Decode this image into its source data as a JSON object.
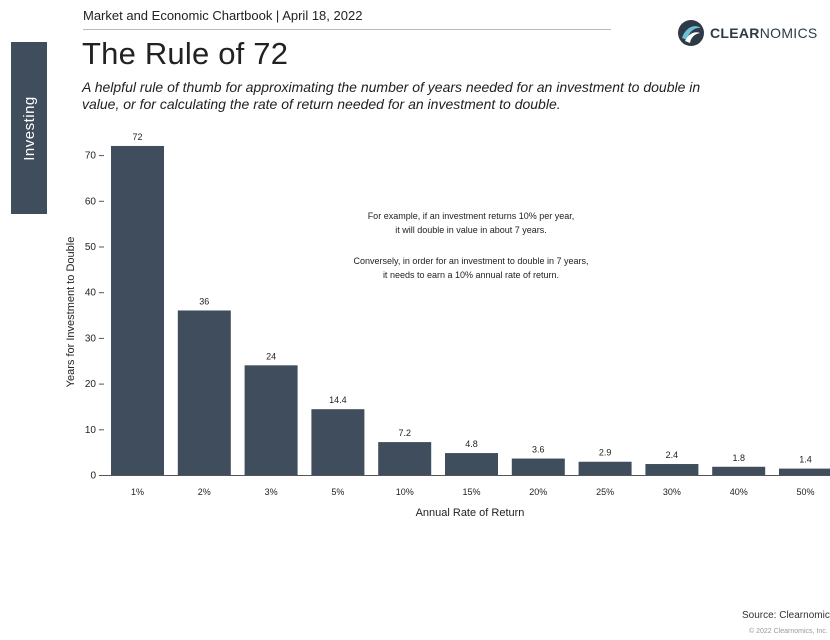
{
  "side_tab": {
    "label": "Investing"
  },
  "header": {
    "chartbook": "Market and Economic Chartbook | April 18, 2022",
    "logo_bold": "CLEAR",
    "logo_thin": "NOMICS",
    "logo_icon": "clearnomics-swirl-icon",
    "title": "The Rule of 72",
    "subtitle": "A helpful rule of thumb for approximating the number of years needed for an investment to double in value, or for calculating the rate of return needed for an investment to double."
  },
  "annotation": {
    "line1": "For example, if an investment returns 10% per year,",
    "line2": "it will double in value in about 7 years.",
    "line3": "Conversely, in order for an investment to double in 7 years,",
    "line4": "it needs to earn a 10% annual rate of return."
  },
  "footer": {
    "source": "Source: Clearnomics",
    "copyright": "© 2022 Clearnomics, Inc."
  },
  "colors": {
    "bar": "#3f4d5c",
    "side_tab": "#3f4d5c",
    "logo_accent": "#6bbfd6"
  },
  "chart_data": {
    "type": "bar",
    "categories": [
      "1%",
      "2%",
      "3%",
      "5%",
      "10%",
      "15%",
      "20%",
      "25%",
      "30%",
      "40%",
      "50%"
    ],
    "values": [
      72,
      36,
      24,
      14.4,
      7.2,
      4.8,
      3.6,
      2.9,
      2.4,
      1.8,
      1.4
    ],
    "data_labels": [
      "72",
      "36",
      "24",
      "14.4",
      "7.2",
      "4.8",
      "3.6",
      "2.9",
      "2.4",
      "1.8",
      "1.4"
    ],
    "title": "",
    "xlabel": "Annual Rate of Return",
    "ylabel": "Years for Investment to Double",
    "ylim": [
      0,
      70
    ],
    "yticks": [
      0,
      10,
      20,
      30,
      40,
      50,
      60,
      70
    ],
    "grid": false,
    "legend": "none"
  }
}
